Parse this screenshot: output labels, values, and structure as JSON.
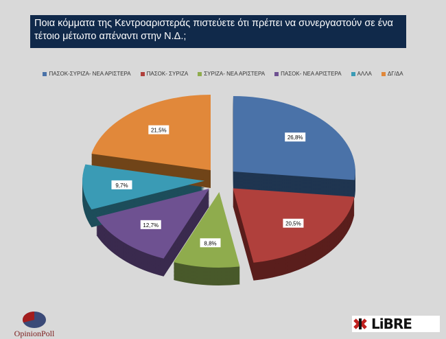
{
  "title": "Ποια κόμματα της Κεντροαριστεράς πιστεύετε ότι πρέπει να συνεργαστούν σε ένα τέτοιο μέτωπο απέναντι στην Ν.Δ.;",
  "chart_data": {
    "type": "pie",
    "style": "3d-exploded",
    "legend_position": "top",
    "categories": [
      "ΠΑΣΟΚ-ΣΥΡΙΖΑ- ΝΕΑ ΑΡΙΣΤΕΡΑ",
      "ΠΑΣΟΚ- ΣΥΡΙΖΑ",
      "ΣΥΡΙΖΑ- ΝΕΑ ΑΡΙΣΤΕΡΑ",
      "ΠΑΣΟΚ- ΝΕΑ ΑΡΙΣΤΕΡΑ",
      "ΑΛΛΑ",
      "ΔΓ/ΔΑ"
    ],
    "values": [
      26.8,
      20.5,
      8.8,
      12.7,
      9.7,
      21.5
    ],
    "labels": [
      "26,8%",
      "20,5%",
      "8,8%",
      "12,7%",
      "9,7%",
      "21,5%"
    ],
    "colors": [
      "#4a72a8",
      "#b0403c",
      "#8fac4d",
      "#6e5191",
      "#3a9bb5",
      "#e1883a"
    ],
    "side_colors": [
      "#1f3550",
      "#5a1e1c",
      "#48592a",
      "#3a2a4e",
      "#1d4d5a",
      "#704418"
    ]
  },
  "logos": {
    "left": "OpinionPoll",
    "right": "LiBRE"
  }
}
